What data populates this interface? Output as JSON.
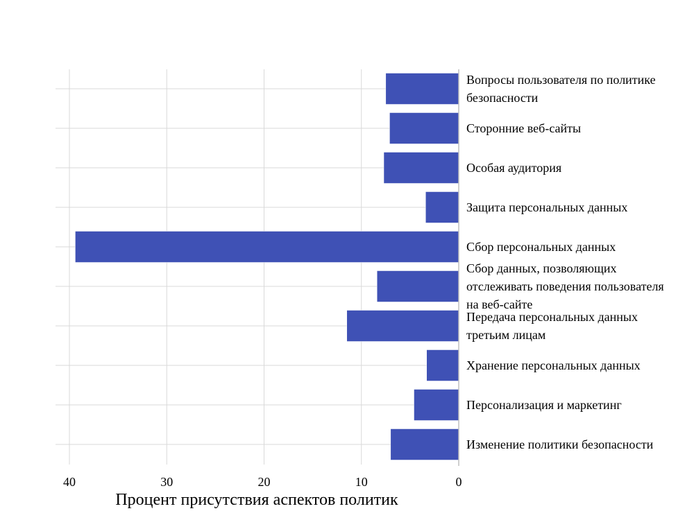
{
  "chart_data": {
    "type": "bar",
    "orientation": "horizontal",
    "x_axis_reversed": true,
    "categories": [
      "Вопросы пользователя по политике безопасности",
      "Сторонние веб-сайты",
      "Особая аудитория",
      "Защита персональных данных",
      "Сбор персональных данных",
      "Сбор данных, позволяющих отслеживать поведения пользователя на веб-сайте",
      "Передача персональных данных третьим лицам",
      "Хранение персональных данных",
      "Персонализация и маркетинг",
      "Изменение политики безопасности"
    ],
    "category_label_lines": [
      [
        "Вопросы пользователя по политике",
        "безопасности"
      ],
      [
        "Сторонние веб-сайты"
      ],
      [
        "Особая аудитория"
      ],
      [
        "Защита персональных данных"
      ],
      [
        "Сбор персональных данных"
      ],
      [
        "Сбор данных, позволяющих",
        "отслеживать поведения пользователя",
        "на веб-сайте"
      ],
      [
        "Передача персональных данных",
        "третьим лицам"
      ],
      [
        "Хранение персональных данных"
      ],
      [
        "Персонализация и маркетинг"
      ],
      [
        "Изменение политики безопасности"
      ]
    ],
    "values": [
      7.5,
      7.1,
      7.7,
      3.4,
      39.4,
      8.4,
      11.5,
      3.3,
      4.6,
      7.0
    ],
    "xlim": [
      0,
      40
    ],
    "xticks": [
      40,
      30,
      20,
      10,
      0
    ],
    "xlabel": "Процент присутствия аспектов политик",
    "ylabel": "",
    "title": "",
    "grid": true,
    "legend": "none",
    "bar_color": "#3f51b5"
  }
}
